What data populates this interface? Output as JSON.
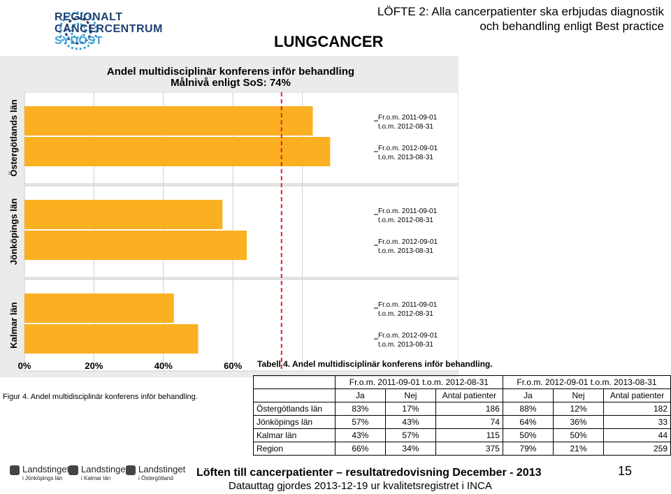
{
  "logo": {
    "line1": "REGIONALT",
    "line2": "CANCERCENTRUM",
    "line3": "SYDÖST"
  },
  "header": {
    "loefte_line1": "LÖFTE 2: Alla cancerpatienter ska erbjudas diagnostik",
    "loefte_line2": "och behandling enligt Best practice",
    "cancer_type": "LUNGCANCER"
  },
  "chart_data": {
    "type": "bar",
    "orientation": "horizontal",
    "title": "Andel multidisciplinär konferens inför behandling",
    "subtitle": "Målnivå enligt SoS: 74%",
    "target": 74,
    "xlim": [
      0,
      100
    ],
    "x_ticks": [
      "0%",
      "20%",
      "40%",
      "60%"
    ],
    "bar_color": "#fbb021",
    "target_line_color": "#e0202a",
    "groups": [
      {
        "name": "Östergötlands län",
        "bars": [
          {
            "label_line1": "Fr.o.m. 2011-09-01",
            "label_line2": "t.o.m. 2012-08-31",
            "value": 83
          },
          {
            "label_line1": "Fr.o.m. 2012-09-01",
            "label_line2": "t.o.m. 2013-08-31",
            "value": 88
          }
        ]
      },
      {
        "name": "Jönköpings län",
        "bars": [
          {
            "label_line1": "Fr.o.m. 2011-09-01",
            "label_line2": "t.o.m. 2012-08-31",
            "value": 57
          },
          {
            "label_line1": "Fr.o.m. 2012-09-01",
            "label_line2": "t.o.m. 2013-08-31",
            "value": 64
          }
        ]
      },
      {
        "name": "Kalmar län",
        "bars": [
          {
            "label_line1": "Fr.o.m. 2011-09-01",
            "label_line2": "t.o.m. 2012-08-31",
            "value": 43
          },
          {
            "label_line1": "Fr.o.m. 2012-09-01",
            "label_line2": "t.o.m. 2013-08-31",
            "value": 50
          }
        ]
      }
    ]
  },
  "figure_caption": "Figur 4. Andel multidisciplinär konferens inför behandling.",
  "table": {
    "caption": "Tabell 4. Andel multidisciplinär konferens inför behandling.",
    "period1": "Fr.o.m. 2011-09-01 t.o.m. 2012-08-31",
    "period2": "Fr.o.m. 2012-09-01 t.o.m. 2013-08-31",
    "col_ja": "Ja",
    "col_nej": "Nej",
    "col_antal": "Antal patienter",
    "rows": [
      {
        "label": "Östergötlands län",
        "ja1": "83%",
        "nej1": "17%",
        "antal1": "186",
        "ja2": "88%",
        "nej2": "12%",
        "antal2": "182"
      },
      {
        "label": "Jönköpings län",
        "ja1": "57%",
        "nej1": "43%",
        "antal1": "74",
        "ja2": "64%",
        "nej2": "36%",
        "antal2": "33"
      },
      {
        "label": "Kalmar län",
        "ja1": "43%",
        "nej1": "57%",
        "antal1": "115",
        "ja2": "50%",
        "nej2": "50%",
        "antal2": "44"
      },
      {
        "label": "Region",
        "ja1": "66%",
        "nej1": "34%",
        "antal1": "375",
        "ja2": "79%",
        "nej2": "21%",
        "antal2": "259"
      }
    ]
  },
  "footer": {
    "main": "Löften till cancerpatienter – resultatredovisning December - 2013",
    "sub": "Datauttag gjordes 2013-12-19 ur kvalitetsregistret i INCA",
    "page_number": "15",
    "landsting": [
      {
        "name": "Landstinget",
        "sub": "i Jönköpings län"
      },
      {
        "name": "Landstinget",
        "sub": "i Kalmar län"
      },
      {
        "name": "Landstinget",
        "sub": "i Östergötland"
      }
    ]
  }
}
